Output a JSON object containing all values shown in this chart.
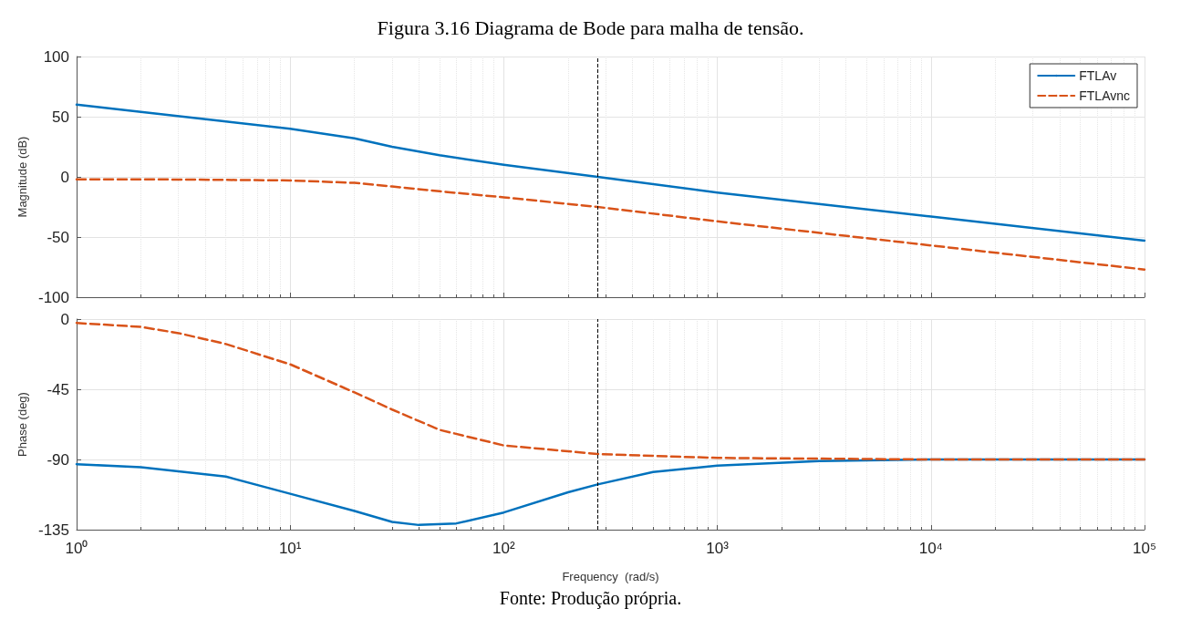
{
  "chart_data": [
    {
      "type": "line",
      "title": "Figura 3.16 Diagrama de Bode para malha de tensão.",
      "ylabel": "Magnitude (dB)",
      "log": "x",
      "xlim": [
        1,
        100000
      ],
      "xticks": [
        {
          "value": 1,
          "label": null
        },
        {
          "value": 10,
          "label": null
        },
        {
          "value": 100,
          "label": null
        },
        {
          "value": 1000,
          "label": null
        },
        {
          "value": 10000,
          "label": null
        },
        {
          "value": 100000,
          "label": null
        }
      ],
      "ylim": [
        -100,
        100
      ],
      "yticks": [
        -100,
        -50,
        0,
        50,
        100
      ],
      "tick_labels": "y",
      "grid": true,
      "legend": "top right",
      "marker": "none",
      "series": [
        {
          "name": "FTLAv",
          "color": "#0072bd",
          "line_style": "solid",
          "x": [
            1,
            2,
            5,
            10,
            20,
            30,
            50,
            100,
            275,
            1000,
            10000,
            100000
          ],
          "values": [
            60,
            54,
            46,
            40,
            32,
            25,
            18,
            10,
            0,
            -13,
            -33,
            -53
          ]
        },
        {
          "name": "FTLAvnc",
          "color": "#d95319",
          "line_style": "dashed",
          "x": [
            1,
            2,
            5,
            10,
            20,
            30,
            50,
            100,
            275,
            1000,
            10000,
            100000
          ],
          "values": [
            -2,
            -2,
            -2.5,
            -3,
            -5,
            -8,
            -12,
            -17,
            -25,
            -37,
            -57,
            -77
          ]
        }
      ],
      "ref_lines": [
        {
          "axis": "x",
          "value": 275,
          "color": "#000000",
          "line_style": "dashed"
        }
      ]
    },
    {
      "type": "line",
      "xlabel": "Frequency  (rad/s)",
      "ylabel": "Phase (deg)",
      "log": "x",
      "xlim": [
        1,
        100000
      ],
      "xticks": [
        {
          "value": 1,
          "label": "10⁰"
        },
        {
          "value": 10,
          "label": "10¹"
        },
        {
          "value": 100,
          "label": "10²"
        },
        {
          "value": 1000,
          "label": "10³"
        },
        {
          "value": 10000,
          "label": "10⁴"
        },
        {
          "value": 100000,
          "label": "10⁵"
        }
      ],
      "ylim": [
        -135,
        0
      ],
      "yticks": [
        -135,
        -90,
        -45,
        0
      ],
      "grid": true,
      "marker": "none",
      "annotations": [
        "Fonte: Produção própria."
      ],
      "series": [
        {
          "color": "#0072bd",
          "line_style": "solid",
          "x": [
            1,
            2,
            5,
            10,
            20,
            30,
            40,
            60,
            100,
            200,
            275,
            500,
            1000,
            3000,
            10000,
            100000
          ],
          "values": [
            -93,
            -95,
            -101,
            -112,
            -123,
            -130,
            -132,
            -131,
            -124,
            -111,
            -106,
            -98,
            -94,
            -91,
            -90,
            -90
          ]
        },
        {
          "color": "#d95319",
          "line_style": "dashed",
          "x": [
            1,
            2,
            3,
            5,
            10,
            20,
            30,
            50,
            100,
            275,
            1000,
            10000,
            100000
          ],
          "values": [
            -2.5,
            -5,
            -9,
            -16,
            -29,
            -47,
            -58,
            -71,
            -81,
            -86.5,
            -89,
            -90,
            -90
          ]
        }
      ],
      "ref_lines": [
        {
          "axis": "x",
          "value": 275,
          "color": "#000000",
          "line_style": "dashed"
        }
      ]
    }
  ]
}
